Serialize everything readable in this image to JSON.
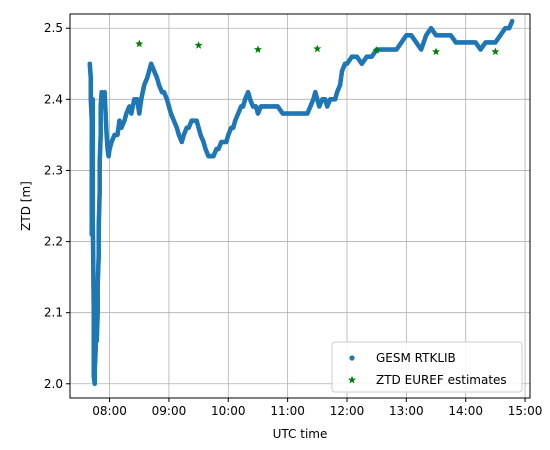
{
  "chart_data": {
    "type": "scatter",
    "xlabel": "UTC time",
    "ylabel": "ZTD [m]",
    "x_unit": "UTC time (HH:MM)",
    "xlim": [
      "07:20",
      "15:05"
    ],
    "ylim": [
      1.98,
      2.52
    ],
    "grid": true,
    "legend_position": "lower right",
    "x_ticks": [
      "08:00",
      "09:00",
      "10:00",
      "11:00",
      "12:00",
      "13:00",
      "14:00",
      "15:00"
    ],
    "y_ticks": [
      "2.0",
      "2.1",
      "2.2",
      "2.3",
      "2.4",
      "2.5"
    ],
    "series": [
      {
        "name": "GESM RTKLIB",
        "marker": "dot",
        "color": "#1f77b4",
        "points": [
          [
            "07:40",
            2.45
          ],
          [
            "07:41",
            2.43
          ],
          [
            "07:41",
            2.4
          ],
          [
            "07:42",
            2.37
          ],
          [
            "07:42",
            2.34
          ],
          [
            "07:42",
            2.31
          ],
          [
            "07:42",
            2.28
          ],
          [
            "07:42",
            2.25
          ],
          [
            "07:42",
            2.22
          ],
          [
            "07:42",
            2.21
          ],
          [
            "07:43",
            2.4
          ],
          [
            "07:43",
            2.36
          ],
          [
            "07:43",
            2.32
          ],
          [
            "07:43",
            2.28
          ],
          [
            "07:43",
            2.24
          ],
          [
            "07:44",
            2.1
          ],
          [
            "07:44",
            2.07
          ],
          [
            "07:44",
            2.04
          ],
          [
            "07:44",
            2.01
          ],
          [
            "07:45",
            2.0
          ],
          [
            "07:45",
            2.02
          ],
          [
            "07:46",
            2.05
          ],
          [
            "07:46",
            2.07
          ],
          [
            "07:47",
            2.09
          ],
          [
            "07:47",
            2.06
          ],
          [
            "07:48",
            2.1
          ],
          [
            "07:48",
            2.14
          ],
          [
            "07:49",
            2.18
          ],
          [
            "07:49",
            2.22
          ],
          [
            "07:50",
            2.27
          ],
          [
            "07:50",
            2.31
          ],
          [
            "07:51",
            2.35
          ],
          [
            "07:51",
            2.39
          ],
          [
            "07:52",
            2.41
          ],
          [
            "07:53",
            2.39
          ],
          [
            "07:54",
            2.4
          ],
          [
            "07:55",
            2.41
          ],
          [
            "07:56",
            2.38
          ],
          [
            "07:57",
            2.35
          ],
          [
            "07:58",
            2.33
          ],
          [
            "07:59",
            2.32
          ],
          [
            "08:00",
            2.33
          ],
          [
            "08:02",
            2.34
          ],
          [
            "08:05",
            2.35
          ],
          [
            "08:08",
            2.35
          ],
          [
            "08:10",
            2.37
          ],
          [
            "08:12",
            2.36
          ],
          [
            "08:15",
            2.37
          ],
          [
            "08:17",
            2.38
          ],
          [
            "08:20",
            2.39
          ],
          [
            "08:22",
            2.38
          ],
          [
            "08:25",
            2.4
          ],
          [
            "08:28",
            2.4
          ],
          [
            "08:30",
            2.38
          ],
          [
            "08:32",
            2.4
          ],
          [
            "08:35",
            2.42
          ],
          [
            "08:38",
            2.43
          ],
          [
            "08:40",
            2.44
          ],
          [
            "08:42",
            2.45
          ],
          [
            "08:45",
            2.44
          ],
          [
            "08:48",
            2.43
          ],
          [
            "08:50",
            2.42
          ],
          [
            "08:53",
            2.41
          ],
          [
            "08:55",
            2.41
          ],
          [
            "08:58",
            2.4
          ],
          [
            "09:00",
            2.39
          ],
          [
            "09:02",
            2.38
          ],
          [
            "09:05",
            2.37
          ],
          [
            "09:08",
            2.36
          ],
          [
            "09:10",
            2.35
          ],
          [
            "09:13",
            2.34
          ],
          [
            "09:15",
            2.35
          ],
          [
            "09:18",
            2.36
          ],
          [
            "09:20",
            2.36
          ],
          [
            "09:23",
            2.37
          ],
          [
            "09:25",
            2.37
          ],
          [
            "09:28",
            2.37
          ],
          [
            "09:30",
            2.36
          ],
          [
            "09:32",
            2.35
          ],
          [
            "09:35",
            2.34
          ],
          [
            "09:37",
            2.33
          ],
          [
            "09:40",
            2.32
          ],
          [
            "09:43",
            2.32
          ],
          [
            "09:45",
            2.32
          ],
          [
            "09:48",
            2.33
          ],
          [
            "09:50",
            2.33
          ],
          [
            "09:53",
            2.34
          ],
          [
            "09:55",
            2.34
          ],
          [
            "09:58",
            2.34
          ],
          [
            "10:00",
            2.35
          ],
          [
            "10:03",
            2.36
          ],
          [
            "10:05",
            2.36
          ],
          [
            "10:07",
            2.37
          ],
          [
            "10:10",
            2.38
          ],
          [
            "10:13",
            2.39
          ],
          [
            "10:15",
            2.39
          ],
          [
            "10:17",
            2.4
          ],
          [
            "10:20",
            2.41
          ],
          [
            "10:22",
            2.4
          ],
          [
            "10:25",
            2.39
          ],
          [
            "10:28",
            2.39
          ],
          [
            "10:30",
            2.38
          ],
          [
            "10:33",
            2.39
          ],
          [
            "10:35",
            2.39
          ],
          [
            "10:38",
            2.39
          ],
          [
            "10:40",
            2.39
          ],
          [
            "10:45",
            2.39
          ],
          [
            "10:50",
            2.39
          ],
          [
            "10:55",
            2.38
          ],
          [
            "11:00",
            2.38
          ],
          [
            "11:05",
            2.38
          ],
          [
            "11:10",
            2.38
          ],
          [
            "11:15",
            2.38
          ],
          [
            "11:20",
            2.38
          ],
          [
            "11:23",
            2.39
          ],
          [
            "11:26",
            2.4
          ],
          [
            "11:28",
            2.41
          ],
          [
            "11:30",
            2.4
          ],
          [
            "11:32",
            2.39
          ],
          [
            "11:35",
            2.4
          ],
          [
            "11:38",
            2.4
          ],
          [
            "11:40",
            2.39
          ],
          [
            "11:43",
            2.4
          ],
          [
            "11:45",
            2.4
          ],
          [
            "11:48",
            2.4
          ],
          [
            "11:50",
            2.41
          ],
          [
            "11:53",
            2.42
          ],
          [
            "11:55",
            2.44
          ],
          [
            "11:58",
            2.45
          ],
          [
            "12:00",
            2.45
          ],
          [
            "12:05",
            2.46
          ],
          [
            "12:10",
            2.46
          ],
          [
            "12:15",
            2.45
          ],
          [
            "12:20",
            2.46
          ],
          [
            "12:25",
            2.46
          ],
          [
            "12:30",
            2.47
          ],
          [
            "12:35",
            2.47
          ],
          [
            "12:40",
            2.47
          ],
          [
            "12:45",
            2.47
          ],
          [
            "12:50",
            2.47
          ],
          [
            "12:55",
            2.48
          ],
          [
            "13:00",
            2.49
          ],
          [
            "13:05",
            2.49
          ],
          [
            "13:10",
            2.48
          ],
          [
            "13:15",
            2.47
          ],
          [
            "13:20",
            2.49
          ],
          [
            "13:25",
            2.5
          ],
          [
            "13:30",
            2.49
          ],
          [
            "13:35",
            2.49
          ],
          [
            "13:40",
            2.49
          ],
          [
            "13:45",
            2.49
          ],
          [
            "13:50",
            2.48
          ],
          [
            "13:55",
            2.48
          ],
          [
            "14:00",
            2.48
          ],
          [
            "14:05",
            2.48
          ],
          [
            "14:10",
            2.48
          ],
          [
            "14:15",
            2.47
          ],
          [
            "14:20",
            2.48
          ],
          [
            "14:25",
            2.48
          ],
          [
            "14:30",
            2.48
          ],
          [
            "14:35",
            2.49
          ],
          [
            "14:40",
            2.5
          ],
          [
            "14:44",
            2.5
          ],
          [
            "14:47",
            2.51
          ]
        ]
      },
      {
        "name": "ZTD EUREF estimates",
        "marker": "star",
        "color": "#008000",
        "points": [
          [
            "08:30",
            2.478
          ],
          [
            "09:30",
            2.476
          ],
          [
            "10:30",
            2.47
          ],
          [
            "11:30",
            2.471
          ],
          [
            "12:30",
            2.469
          ],
          [
            "13:30",
            2.467
          ],
          [
            "14:30",
            2.467
          ]
        ]
      }
    ]
  }
}
